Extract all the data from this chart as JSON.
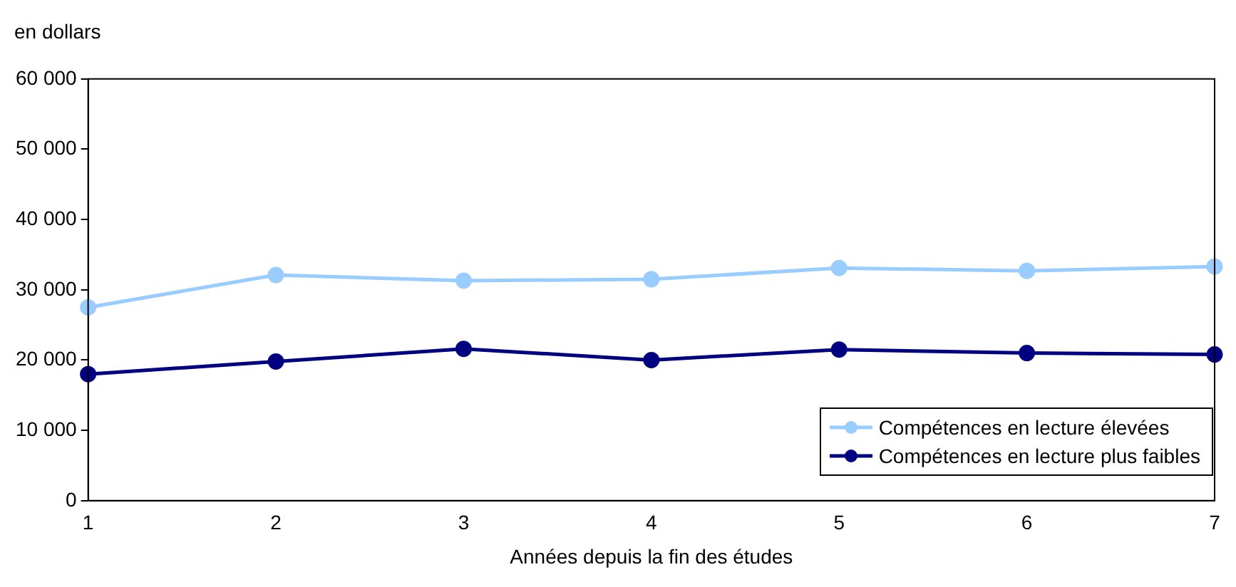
{
  "chart_data": {
    "type": "line",
    "ylabel": "en dollars",
    "xlabel": "Années depuis la fin des études",
    "categories": [
      "1",
      "2",
      "3",
      "4",
      "5",
      "6",
      "7"
    ],
    "ylim": [
      0,
      60000
    ],
    "yticks": [
      {
        "value": 0,
        "label": "0"
      },
      {
        "value": 10000,
        "label": "10 000"
      },
      {
        "value": 20000,
        "label": "20 000"
      },
      {
        "value": 30000,
        "label": "30 000"
      },
      {
        "value": 40000,
        "label": "40 000"
      },
      {
        "value": 50000,
        "label": "50 000"
      },
      {
        "value": 60000,
        "label": "60 000"
      }
    ],
    "series": [
      {
        "name": "Compétences en lecture élevées",
        "color": "#99ccff",
        "values": [
          27500,
          32100,
          31300,
          31500,
          33100,
          32700,
          33300
        ]
      },
      {
        "name": "Compétences en lecture plus faibles",
        "color": "#000080",
        "values": [
          18000,
          19800,
          21600,
          20000,
          21500,
          21000,
          20800
        ]
      }
    ],
    "grid": false,
    "legend": "bottom right",
    "marker": "circle",
    "line_style": "solid"
  }
}
